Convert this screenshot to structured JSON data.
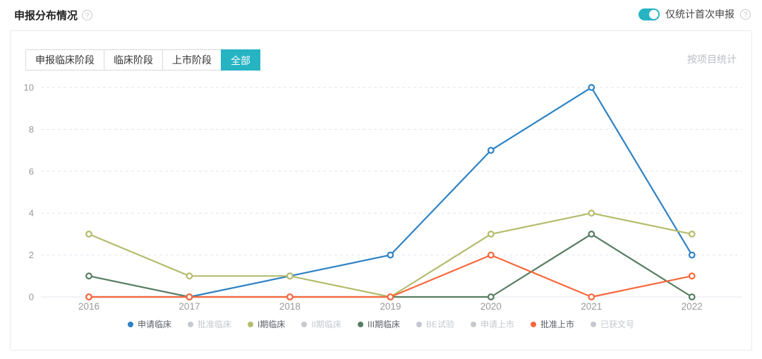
{
  "header": {
    "title": "申报分布情况",
    "toggle": {
      "label": "仅统计首次申报",
      "state": "on"
    }
  },
  "toolbar": {
    "tabs": [
      {
        "label": "申报临床阶段",
        "active": false
      },
      {
        "label": "临床阶段",
        "active": false
      },
      {
        "label": "上市阶段",
        "active": false
      },
      {
        "label": "全部",
        "active": true
      }
    ],
    "stat_mode_label": "按项目统计"
  },
  "chart_data": {
    "type": "line",
    "title": "申报分布情况",
    "categories": [
      "2016",
      "2017",
      "2018",
      "2019",
      "2020",
      "2021",
      "2022"
    ],
    "xlabel": "",
    "ylabel": "",
    "ylim": [
      0,
      10
    ],
    "yticks": [
      0,
      2,
      4,
      6,
      8,
      10
    ],
    "grid": "horizontal-dashed",
    "legend_position": "bottom",
    "series": [
      {
        "name": "申请临床",
        "color": "#2e82c4",
        "enabled": true,
        "values": [
          0,
          0,
          1,
          2,
          7,
          10,
          2
        ]
      },
      {
        "name": "批准临床",
        "color": "#c5c8ce",
        "enabled": false
      },
      {
        "name": "I期临床",
        "color": "#b5bc6d",
        "enabled": true,
        "values": [
          3,
          1,
          1,
          0,
          3,
          4,
          3
        ]
      },
      {
        "name": "II期临床",
        "color": "#c5c8ce",
        "enabled": false
      },
      {
        "name": "III期临床",
        "color": "#567d62",
        "enabled": true,
        "values": [
          1,
          0,
          0,
          0,
          0,
          3,
          0
        ]
      },
      {
        "name": "BE试验",
        "color": "#c5c8ce",
        "enabled": false
      },
      {
        "name": "申请上市",
        "color": "#c5c8ce",
        "enabled": false
      },
      {
        "name": "批准上市",
        "color": "#f9683c",
        "enabled": true,
        "values": [
          0,
          0,
          0,
          0,
          2,
          0,
          1
        ]
      },
      {
        "name": "已获文号",
        "color": "#c5c8ce",
        "enabled": false
      }
    ]
  },
  "colors": {
    "accent_teal": "#26b4c3",
    "axis_label": "#999999",
    "grid_dashed": "#dfe5ef",
    "axis_line": "#e4e7ed",
    "disabled_legend": "#c5c8ce"
  }
}
